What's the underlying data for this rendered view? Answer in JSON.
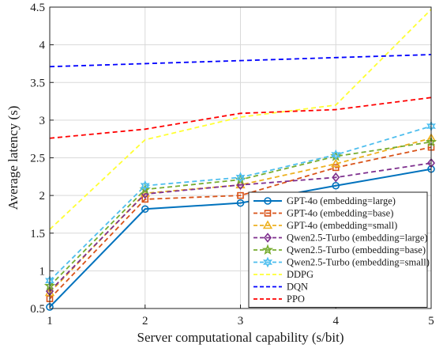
{
  "chart_data": {
    "type": "line",
    "xlabel": "Server computational capability (s/bit)",
    "ylabel": "Average latency (s)",
    "x": [
      1,
      2,
      3,
      4,
      5
    ],
    "xlim": [
      1,
      5
    ],
    "ylim": [
      0.5,
      4.5
    ],
    "xticks": [
      "1",
      "2",
      "3",
      "4",
      "5"
    ],
    "yticks": [
      "0.5",
      "1",
      "1.5",
      "2",
      "2.5",
      "3",
      "3.5",
      "4",
      "4.5"
    ],
    "grid": true,
    "legend_position": "bottom-right",
    "series": [
      {
        "name": "GPT-4o (embedding=large)",
        "values": [
          0.52,
          1.82,
          1.9,
          2.13,
          2.35
        ],
        "color": "#0072BD",
        "dash": "solid",
        "marker": "circle"
      },
      {
        "name": "GPT-4o (embedding=base)",
        "values": [
          0.63,
          1.95,
          2.0,
          2.37,
          2.64
        ],
        "color": "#D95319",
        "dash": "dashed",
        "marker": "square"
      },
      {
        "name": "GPT-4o (embedding=small)",
        "values": [
          0.71,
          2.03,
          2.14,
          2.42,
          2.76
        ],
        "color": "#EDB120",
        "dash": "dashed",
        "marker": "triangle"
      },
      {
        "name": "Qwen2.5-Turbo (embedding=large)",
        "values": [
          0.73,
          2.02,
          2.14,
          2.24,
          2.43
        ],
        "color": "#7E2F8E",
        "dash": "dashed",
        "marker": "diamond"
      },
      {
        "name": "Qwen2.5-Turbo (embedding=base)",
        "values": [
          0.8,
          2.08,
          2.21,
          2.52,
          2.71
        ],
        "color": "#77AC30",
        "dash": "dashed",
        "marker": "pentagram"
      },
      {
        "name": "Qwen2.5-Turbo (embedding=small)",
        "values": [
          0.87,
          2.13,
          2.24,
          2.54,
          2.92
        ],
        "color": "#4DBEEE",
        "dash": "dashed",
        "marker": "hexagram"
      },
      {
        "name": "DDPG",
        "values": [
          1.55,
          2.74,
          3.04,
          3.2,
          4.47
        ],
        "color": "#FFFF33",
        "dash": "dashed",
        "marker": "none"
      },
      {
        "name": "DQN",
        "values": [
          3.71,
          3.75,
          3.79,
          3.83,
          3.87
        ],
        "color": "#0000FF",
        "dash": "dashed",
        "marker": "none"
      },
      {
        "name": "PPO",
        "values": [
          2.76,
          2.88,
          3.09,
          3.14,
          3.3
        ],
        "color": "#FF0000",
        "dash": "dashed",
        "marker": "none"
      }
    ]
  }
}
